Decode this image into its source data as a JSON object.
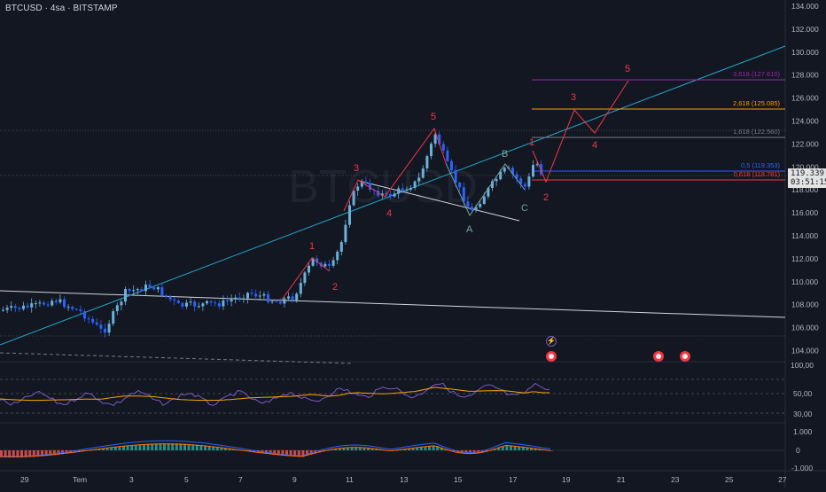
{
  "header": {
    "title": "BTCUSD · 4sa · BITSTAMP"
  },
  "watermark": "BTCUSD",
  "price_axis": {
    "labels": [
      "134.000",
      "132.000",
      "130.000",
      "128.000",
      "126.000",
      "124.000",
      "122.000",
      "120.000",
      "118.000",
      "116.000",
      "114.000",
      "112.000",
      "110.000",
      "108.000",
      "106.000",
      "104.000"
    ],
    "current_price": "119.339",
    "countdown": "03:51:15"
  },
  "time_axis": {
    "labels": [
      "29",
      "Tem",
      "3",
      "5",
      "7",
      "9",
      "11",
      "13",
      "15",
      "17",
      "19",
      "21",
      "23",
      "25",
      "27"
    ]
  },
  "fib_levels": [
    {
      "label": "3,618 (127.610)",
      "color": "#9c27b0"
    },
    {
      "label": "2,618 (125.085)",
      "color": "#ff9800"
    },
    {
      "label": "1,618 (122.560)",
      "color": "#787b86"
    },
    {
      "label": "0,5 (119.353)",
      "color": "#2962ff"
    },
    {
      "label": "0,618 (118.781)",
      "color": "#f23645"
    }
  ],
  "wave_labels": {
    "impulse_small": [
      "1",
      "2"
    ],
    "impulse_main": [
      "3",
      "4",
      "5"
    ],
    "corrective": [
      "A",
      "B",
      "C"
    ],
    "projection": [
      "1",
      "2",
      "3",
      "4",
      "5"
    ]
  },
  "rsi_axis": [
    "100,00",
    "50,00",
    "30,00"
  ],
  "macd_axis": [
    "1.000",
    "0",
    "-1.000"
  ],
  "colors": {
    "background": "#131722",
    "bull": "#6ab0d8",
    "bear": "#2962ff",
    "wave_red": "#f23645",
    "wave_teal": "#7aa39a",
    "trendline_cyan": "#22a6c8",
    "rsi_line": "#7e57c2",
    "rsi_ma": "#f7a600",
    "hist_up": "#26a69a",
    "hist_down": "#ef5350"
  },
  "icons": [
    "lightning-event-icon",
    "us-flag-event-icon"
  ]
}
